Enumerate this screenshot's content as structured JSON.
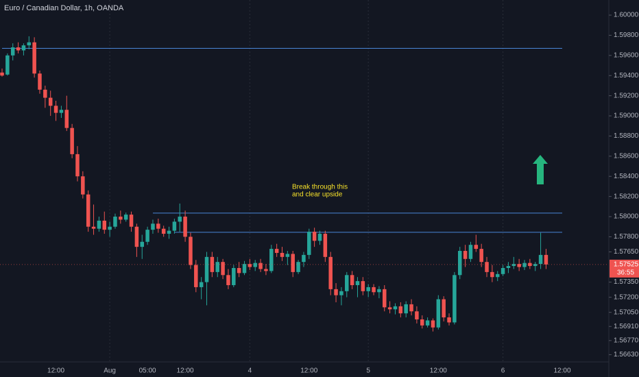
{
  "chart_data": {
    "type": "candlestick",
    "title": "Euro / Canadian Dollar, 1h, OANDA",
    "annotation": [
      "Break through this",
      "and clear upside"
    ],
    "up_color": "#26a69a",
    "down_color": "#ef5350",
    "level_color": "#4a86d8",
    "annotation_color": "#f5e02a",
    "price_label": 1.57525,
    "countdown": "36:55",
    "ylim": [
      1.56558,
      1.6015
    ],
    "yticks": [
      {
        "value": 1.6,
        "label": "1.60000"
      },
      {
        "value": 1.598,
        "label": "1.59800"
      },
      {
        "value": 1.596,
        "label": "1.59600"
      },
      {
        "value": 1.594,
        "label": "1.59400"
      },
      {
        "value": 1.592,
        "label": "1.59200"
      },
      {
        "value": 1.59,
        "label": "1.59000"
      },
      {
        "value": 1.588,
        "label": "1.58800"
      },
      {
        "value": 1.586,
        "label": "1.58600"
      },
      {
        "value": 1.584,
        "label": "1.58400"
      },
      {
        "value": 1.582,
        "label": "1.58200"
      },
      {
        "value": 1.58,
        "label": "1.58000"
      },
      {
        "value": 1.578,
        "label": "1.57800"
      },
      {
        "value": 1.5765,
        "label": "1.57650"
      },
      {
        "value": 1.5735,
        "label": "1.57350"
      },
      {
        "value": 1.572,
        "label": "1.57200"
      },
      {
        "value": 1.5705,
        "label": "1.57050"
      },
      {
        "value": 1.5691,
        "label": "1.56910"
      },
      {
        "value": 1.5677,
        "label": "1.56770"
      },
      {
        "value": 1.5663,
        "label": "1.56630"
      }
    ],
    "categories": [
      null,
      null,
      null,
      null,
      null,
      null,
      null,
      null,
      null,
      null,
      "12:00",
      null,
      null,
      null,
      null,
      null,
      null,
      null,
      null,
      null,
      "Aug",
      null,
      null,
      null,
      null,
      null,
      null,
      "05:00",
      null,
      null,
      null,
      null,
      null,
      null,
      "12:00",
      null,
      null,
      null,
      null,
      null,
      null,
      null,
      null,
      null,
      null,
      null,
      "4",
      null,
      null,
      null,
      null,
      null,
      null,
      null,
      null,
      null,
      null,
      "12:00",
      null,
      null,
      null,
      null,
      null,
      null,
      null,
      null,
      null,
      null,
      "5",
      null,
      null,
      null,
      null,
      null,
      null,
      null,
      null,
      null,
      null,
      null,
      null,
      "12:00",
      null,
      null,
      null,
      null,
      null,
      null,
      null,
      null,
      null,
      null,
      null,
      "6",
      null,
      null,
      null,
      null,
      null,
      null,
      null,
      null,
      null,
      null,
      "12:00"
    ],
    "candles": [
      [
        1.5943,
        1.5947,
        1.5939,
        1.594
      ],
      [
        1.5941,
        1.5962,
        1.594,
        1.596
      ],
      [
        1.596,
        1.5972,
        1.5955,
        1.5968
      ],
      [
        1.5968,
        1.5973,
        1.5962,
        1.5965
      ],
      [
        1.5965,
        1.5972,
        1.596,
        1.597
      ],
      [
        1.597,
        1.5979,
        1.5966,
        1.5973
      ],
      [
        1.5973,
        1.5978,
        1.5938,
        1.5942
      ],
      [
        1.5942,
        1.5945,
        1.5922,
        1.5926
      ],
      [
        1.5926,
        1.593,
        1.5908,
        1.5918
      ],
      [
        1.5918,
        1.5925,
        1.59,
        1.591
      ],
      [
        1.591,
        1.5915,
        1.5895,
        1.5903
      ],
      [
        1.5903,
        1.591,
        1.5898,
        1.5906
      ],
      [
        1.5906,
        1.592,
        1.5885,
        1.5888
      ],
      [
        1.5888,
        1.5892,
        1.5858,
        1.5862
      ],
      [
        1.5862,
        1.587,
        1.5835,
        1.584
      ],
      [
        1.584,
        1.5845,
        1.5818,
        1.5822
      ],
      [
        1.5822,
        1.5826,
        1.5785,
        1.579
      ],
      [
        1.579,
        1.5812,
        1.5782,
        1.5788
      ],
      [
        1.5788,
        1.58,
        1.5785,
        1.5796
      ],
      [
        1.5796,
        1.5805,
        1.5783,
        1.5787
      ],
      [
        1.5787,
        1.5795,
        1.578,
        1.579
      ],
      [
        1.579,
        1.5803,
        1.5788,
        1.58
      ],
      [
        1.58,
        1.5806,
        1.5793,
        1.5797
      ],
      [
        1.5797,
        1.5804,
        1.5795,
        1.5802
      ],
      [
        1.5802,
        1.5805,
        1.5785,
        1.579
      ],
      [
        1.579,
        1.5793,
        1.576,
        1.577
      ],
      [
        1.577,
        1.5782,
        1.5758,
        1.5775
      ],
      [
        1.5775,
        1.579,
        1.5772,
        1.5787
      ],
      [
        1.5787,
        1.5797,
        1.5783,
        1.5793
      ],
      [
        1.5793,
        1.5798,
        1.5784,
        1.5788
      ],
      [
        1.5788,
        1.5791,
        1.578,
        1.5783
      ],
      [
        1.5783,
        1.579,
        1.5778,
        1.5786
      ],
      [
        1.5786,
        1.5798,
        1.5783,
        1.5795
      ],
      [
        1.5795,
        1.5813,
        1.5785,
        1.58
      ],
      [
        1.58,
        1.5806,
        1.5775,
        1.578
      ],
      [
        1.578,
        1.5784,
        1.5748,
        1.5752
      ],
      [
        1.5752,
        1.5757,
        1.5725,
        1.573
      ],
      [
        1.573,
        1.574,
        1.5718,
        1.5735
      ],
      [
        1.5735,
        1.5765,
        1.5712,
        1.576
      ],
      [
        1.576,
        1.5765,
        1.574,
        1.5745
      ],
      [
        1.5745,
        1.576,
        1.574,
        1.5755
      ],
      [
        1.5755,
        1.5758,
        1.5738,
        1.5742
      ],
      [
        1.5742,
        1.5748,
        1.5728,
        1.5732
      ],
      [
        1.5732,
        1.5752,
        1.573,
        1.5749
      ],
      [
        1.5749,
        1.5755,
        1.574,
        1.5744
      ],
      [
        1.5744,
        1.5756,
        1.5742,
        1.5753
      ],
      [
        1.5753,
        1.5758,
        1.5747,
        1.575
      ],
      [
        1.575,
        1.5757,
        1.5746,
        1.5754
      ],
      [
        1.5754,
        1.5758,
        1.5745,
        1.5748
      ],
      [
        1.5748,
        1.5753,
        1.5742,
        1.5746
      ],
      [
        1.5746,
        1.5772,
        1.5744,
        1.5768
      ],
      [
        1.5768,
        1.5773,
        1.576,
        1.5764
      ],
      [
        1.5764,
        1.577,
        1.5756,
        1.576
      ],
      [
        1.576,
        1.5766,
        1.5752,
        1.5763
      ],
      [
        1.5763,
        1.5766,
        1.574,
        1.5745
      ],
      [
        1.5745,
        1.5757,
        1.5743,
        1.5755
      ],
      [
        1.5755,
        1.5765,
        1.575,
        1.5762
      ],
      [
        1.5762,
        1.5788,
        1.5758,
        1.5785
      ],
      [
        1.5785,
        1.5789,
        1.577,
        1.5776
      ],
      [
        1.5776,
        1.5786,
        1.5772,
        1.5783
      ],
      [
        1.5783,
        1.5786,
        1.5755,
        1.576
      ],
      [
        1.576,
        1.5765,
        1.5722,
        1.5728
      ],
      [
        1.5728,
        1.5734,
        1.5715,
        1.5722
      ],
      [
        1.5722,
        1.573,
        1.5712,
        1.5726
      ],
      [
        1.5726,
        1.5745,
        1.572,
        1.5742
      ],
      [
        1.5742,
        1.5746,
        1.5728,
        1.5732
      ],
      [
        1.5732,
        1.574,
        1.572,
        1.5736
      ],
      [
        1.5736,
        1.574,
        1.5722,
        1.5726
      ],
      [
        1.5726,
        1.5733,
        1.572,
        1.573
      ],
      [
        1.573,
        1.5733,
        1.5722,
        1.5725
      ],
      [
        1.5725,
        1.5731,
        1.5719,
        1.5728
      ],
      [
        1.5728,
        1.5732,
        1.5706,
        1.571
      ],
      [
        1.571,
        1.5716,
        1.5704,
        1.5708
      ],
      [
        1.5708,
        1.5714,
        1.5703,
        1.5711
      ],
      [
        1.5711,
        1.5715,
        1.57,
        1.5704
      ],
      [
        1.5704,
        1.5716,
        1.57,
        1.5713
      ],
      [
        1.5713,
        1.5718,
        1.5702,
        1.5706
      ],
      [
        1.5706,
        1.5711,
        1.5694,
        1.5698
      ],
      [
        1.5698,
        1.5702,
        1.5689,
        1.5692
      ],
      [
        1.5692,
        1.57,
        1.569,
        1.5697
      ],
      [
        1.5697,
        1.5699,
        1.5686,
        1.569
      ],
      [
        1.569,
        1.5722,
        1.5688,
        1.5718
      ],
      [
        1.5718,
        1.5721,
        1.5696,
        1.57
      ],
      [
        1.57,
        1.5704,
        1.5692,
        1.5695
      ],
      [
        1.5695,
        1.5745,
        1.5693,
        1.5742
      ],
      [
        1.5742,
        1.577,
        1.5738,
        1.5766
      ],
      [
        1.5766,
        1.5772,
        1.575,
        1.5758
      ],
      [
        1.5758,
        1.5775,
        1.5755,
        1.5772
      ],
      [
        1.5772,
        1.5782,
        1.5765,
        1.5768
      ],
      [
        1.5768,
        1.5773,
        1.575,
        1.5755
      ],
      [
        1.5755,
        1.576,
        1.574,
        1.5745
      ],
      [
        1.5745,
        1.5752,
        1.5735,
        1.574
      ],
      [
        1.574,
        1.5746,
        1.5736,
        1.5743
      ],
      [
        1.5743,
        1.5752,
        1.5741,
        1.5749
      ],
      [
        1.5749,
        1.5755,
        1.5744,
        1.5751
      ],
      [
        1.5751,
        1.576,
        1.5748,
        1.5753
      ],
      [
        1.5753,
        1.5758,
        1.5746,
        1.575
      ],
      [
        1.575,
        1.5757,
        1.5747,
        1.5754
      ],
      [
        1.5754,
        1.5758,
        1.5748,
        1.5751
      ],
      [
        1.5751,
        1.5755,
        1.5746,
        1.5753
      ],
      [
        1.5753,
        1.5784,
        1.5748,
        1.5762
      ],
      [
        1.5762,
        1.5768,
        1.5748,
        1.57525
      ],
      null,
      null,
      null
    ],
    "levels": [
      {
        "value": 1.5967,
        "from": 0,
        "to": 104
      },
      {
        "value": 1.58035,
        "from": 28,
        "to": 104
      },
      {
        "value": 1.57845,
        "from": 32,
        "to": 104
      }
    ]
  }
}
